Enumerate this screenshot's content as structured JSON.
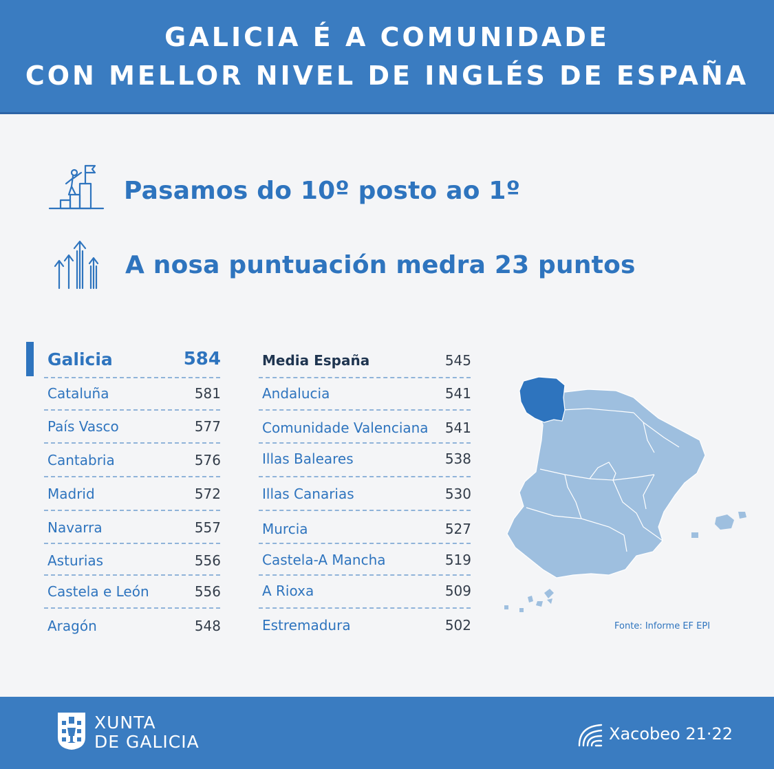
{
  "header": {
    "line1": "GALICIA É A COMUNIDADE",
    "line2": "CON MELLOR NIVEL DE INGLÉS DE ESPAÑA"
  },
  "stats": [
    {
      "text": "Pasamos do 10º posto ao 1º",
      "icon": "climbing-podium-flag-icon"
    },
    {
      "text": "A nosa puntuación medra 23 puntos",
      "icon": "rising-arrows-icon"
    }
  ],
  "ranking_left": [
    {
      "name": "Galicia",
      "score": "584"
    },
    {
      "name": "Cataluña",
      "score": "581"
    },
    {
      "name": "País Vasco",
      "score": "577"
    },
    {
      "name": "Cantabria",
      "score": "576"
    },
    {
      "name": "Madrid",
      "score": "572"
    },
    {
      "name": "Navarra",
      "score": "557"
    },
    {
      "name": "Asturias",
      "score": "556"
    },
    {
      "name": "Castela e León",
      "score": "556"
    },
    {
      "name": "Aragón",
      "score": "548"
    }
  ],
  "ranking_right": [
    {
      "name": "Media España",
      "score": "545"
    },
    {
      "name": "Andalucia",
      "score": "541"
    },
    {
      "name": "Comunidade Valenciana",
      "score": "541"
    },
    {
      "name": "Illas Baleares",
      "score": "538"
    },
    {
      "name": "Illas Canarias",
      "score": "530"
    },
    {
      "name": "Murcia",
      "score": "527"
    },
    {
      "name": "Castela-A Mancha",
      "score": "519"
    },
    {
      "name": "A Rioxa",
      "score": "509"
    },
    {
      "name": "Estremadura",
      "score": "502"
    }
  ],
  "source": "Fonte: Informe EF EPI",
  "footer": {
    "xunta_line1": "XUNTA",
    "xunta_line2": "DE GALICIA",
    "xacobeo": "Xacobeo 21·22"
  },
  "colors": {
    "brand_blue": "#3a7cc1",
    "text_blue": "#2e74be",
    "map_light": "#9ebfdf",
    "map_highlight": "#2e74be",
    "background": "#f4f5f7"
  }
}
